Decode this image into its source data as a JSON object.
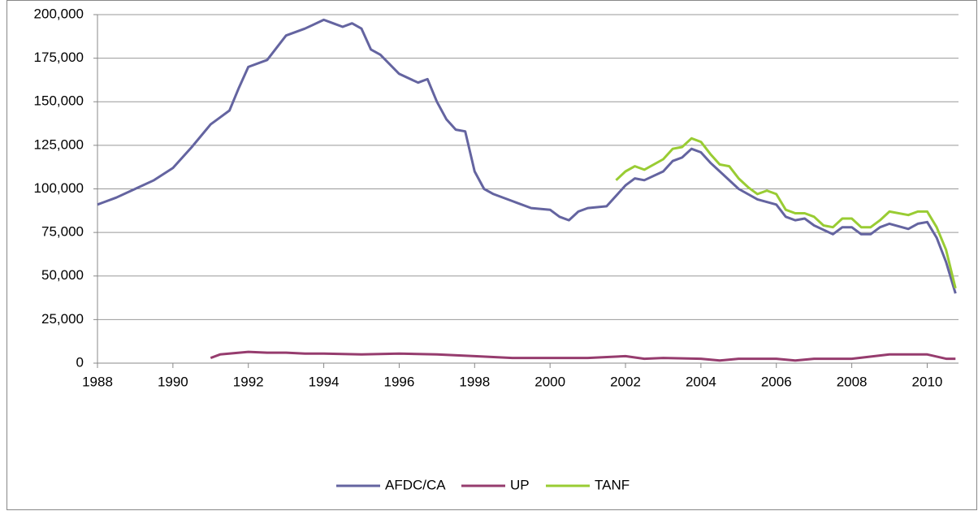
{
  "chart_data": {
    "type": "line",
    "xlim": [
      1988,
      2010.83
    ],
    "xticks": [
      1988,
      1990,
      1992,
      1994,
      1996,
      1998,
      2000,
      2002,
      2004,
      2006,
      2008,
      2010
    ],
    "ylim": [
      0,
      200000
    ],
    "yticks": [
      0,
      {
        "value": 25000,
        "label": "25,000"
      },
      {
        "value": 50000,
        "label": "50,000"
      },
      {
        "value": 75000,
        "label": "75,000"
      },
      {
        "value": 100000,
        "label": "100,000"
      },
      {
        "value": 125000,
        "label": "125,000"
      },
      {
        "value": 150000,
        "label": "150,000"
      },
      {
        "value": 175000,
        "label": "175,000"
      },
      {
        "value": 200000,
        "label": "200,000"
      }
    ],
    "grid": true,
    "legend": "bottom",
    "series": [
      {
        "name": "AFDC/CA",
        "color": "#6464a0",
        "x": [
          1988.0,
          1988.5,
          1989.0,
          1989.5,
          1990.0,
          1990.5,
          1991.0,
          1991.25,
          1991.5,
          1991.75,
          1992.0,
          1992.5,
          1993.0,
          1993.5,
          1994.0,
          1994.25,
          1994.5,
          1994.75,
          1995.0,
          1995.25,
          1995.5,
          1996.0,
          1996.5,
          1996.75,
          1997.0,
          1997.25,
          1997.5,
          1997.75,
          1998.0,
          1998.25,
          1998.5,
          1999.0,
          1999.5,
          2000.0,
          2000.25,
          2000.5,
          2000.75,
          2001.0,
          2001.5,
          2002.0,
          2002.25,
          2002.5,
          2003.0,
          2003.25,
          2003.5,
          2003.75,
          2004.0,
          2004.25,
          2004.5,
          2005.0,
          2005.5,
          2006.0,
          2006.25,
          2006.5,
          2006.75,
          2007.0,
          2007.5,
          2007.75,
          2008.0,
          2008.25,
          2008.5,
          2008.75,
          2009.0,
          2009.5,
          2009.75,
          2010.0,
          2010.25,
          2010.5,
          2010.75
        ],
        "values": [
          91000,
          95000,
          100000,
          105000,
          112000,
          124000,
          137000,
          141000,
          145000,
          158000,
          170000,
          174000,
          188000,
          192000,
          197000,
          195000,
          193000,
          195000,
          192000,
          180000,
          177000,
          166000,
          161000,
          163000,
          150000,
          140000,
          134000,
          133000,
          110000,
          100000,
          97000,
          93000,
          89000,
          88000,
          84000,
          82000,
          87000,
          89000,
          90000,
          102000,
          106000,
          105000,
          110000,
          116000,
          118000,
          123000,
          121000,
          115000,
          110000,
          100000,
          94000,
          91000,
          84000,
          82000,
          83000,
          79000,
          74000,
          78000,
          78000,
          74000,
          74000,
          78000,
          80000,
          77000,
          80000,
          81000,
          72000,
          58000,
          40000
        ]
      },
      {
        "name": "UP",
        "color": "#963c6e",
        "x": [
          1991.0,
          1991.25,
          1992.0,
          1992.5,
          1993.0,
          1993.5,
          1994.0,
          1995.0,
          1996.0,
          1997.0,
          1998.0,
          1999.0,
          2000.0,
          2001.0,
          2002.0,
          2002.5,
          2003.0,
          2004.0,
          2004.5,
          2005.0,
          2006.0,
          2006.5,
          2007.0,
          2008.0,
          2009.0,
          2010.0,
          2010.5,
          2010.75
        ],
        "values": [
          3000,
          5000,
          6500,
          6000,
          6000,
          5500,
          5500,
          5000,
          5500,
          5000,
          4000,
          3000,
          3000,
          3000,
          4000,
          2500,
          3000,
          2500,
          1500,
          2500,
          2500,
          1500,
          2500,
          2500,
          5000,
          5000,
          2500,
          2500
        ]
      },
      {
        "name": "TANF",
        "color": "#99cc33",
        "x": [
          2001.75,
          2002.0,
          2002.25,
          2002.5,
          2003.0,
          2003.25,
          2003.5,
          2003.75,
          2004.0,
          2004.25,
          2004.5,
          2004.75,
          2005.0,
          2005.25,
          2005.5,
          2005.75,
          2006.0,
          2006.25,
          2006.5,
          2006.75,
          2007.0,
          2007.25,
          2007.5,
          2007.75,
          2008.0,
          2008.25,
          2008.5,
          2008.75,
          2009.0,
          2009.5,
          2009.75,
          2010.0,
          2010.25,
          2010.5,
          2010.75
        ],
        "values": [
          105000,
          110000,
          113000,
          111000,
          117000,
          123000,
          124000,
          129000,
          127000,
          120000,
          114000,
          113000,
          106000,
          101000,
          97000,
          99000,
          97000,
          88000,
          86000,
          86000,
          84000,
          79000,
          78000,
          83000,
          83000,
          78000,
          78000,
          82000,
          87000,
          85000,
          87000,
          87000,
          78000,
          65000,
          43000
        ]
      }
    ]
  }
}
